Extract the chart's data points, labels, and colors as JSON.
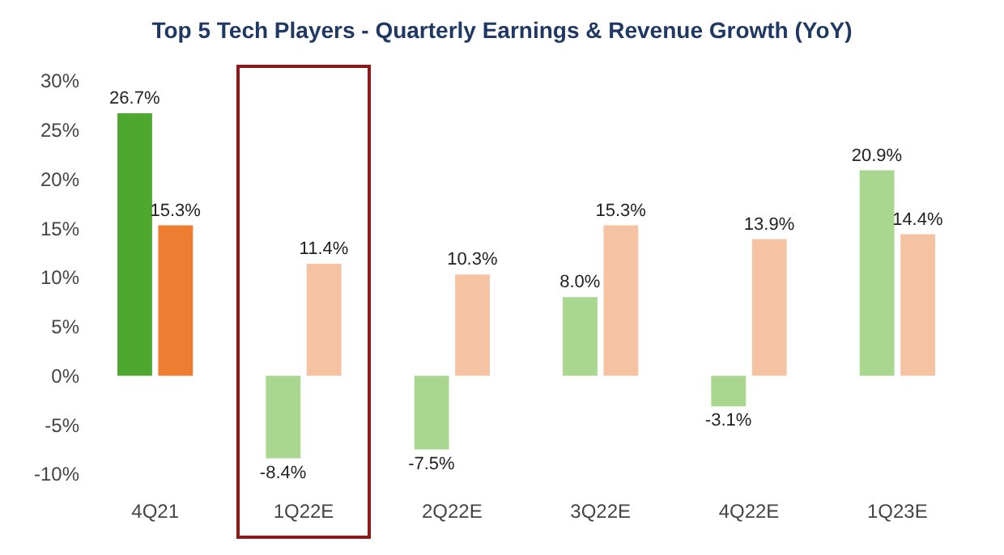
{
  "chart_data": {
    "type": "bar",
    "title": "Top 5 Tech Players - Quarterly Earnings & Revenue Growth (YoY)",
    "categories": [
      "4Q21",
      "1Q22E",
      "2Q22E",
      "3Q22E",
      "4Q22E",
      "1Q23E"
    ],
    "series": [
      {
        "colors": [
          "#4ea72e",
          "#a9d78f",
          "#a9d78f",
          "#a9d78f",
          "#a9d78f",
          "#a9d78f"
        ],
        "values": [
          26.7,
          -8.4,
          -7.5,
          8.0,
          -3.1,
          20.9
        ],
        "value_labels": [
          "26.7%",
          "-8.4%",
          "-7.5%",
          "8.0%",
          "-3.1%",
          "20.9%"
        ]
      },
      {
        "colors": [
          "#ed7d31",
          "#f6c3a2",
          "#f6c3a2",
          "#f6c3a2",
          "#f6c3a2",
          "#f6c3a2"
        ],
        "values": [
          15.3,
          11.4,
          10.3,
          15.3,
          13.9,
          14.4
        ],
        "value_labels": [
          "15.3%",
          "11.4%",
          "10.3%",
          "15.3%",
          "13.9%",
          "14.4%"
        ]
      }
    ],
    "ylim": [
      -10,
      30
    ],
    "yticks": [
      {
        "value": -10,
        "label": "-10%"
      },
      {
        "value": -5,
        "label": "-5%"
      },
      {
        "value": 0,
        "label": "0%"
      },
      {
        "value": 5,
        "label": "5%"
      },
      {
        "value": 10,
        "label": "10%"
      },
      {
        "value": 15,
        "label": "15%"
      },
      {
        "value": 20,
        "label": "20%"
      },
      {
        "value": 25,
        "label": "25%"
      },
      {
        "value": 30,
        "label": "30%"
      }
    ],
    "grid": false,
    "legend": false
  }
}
